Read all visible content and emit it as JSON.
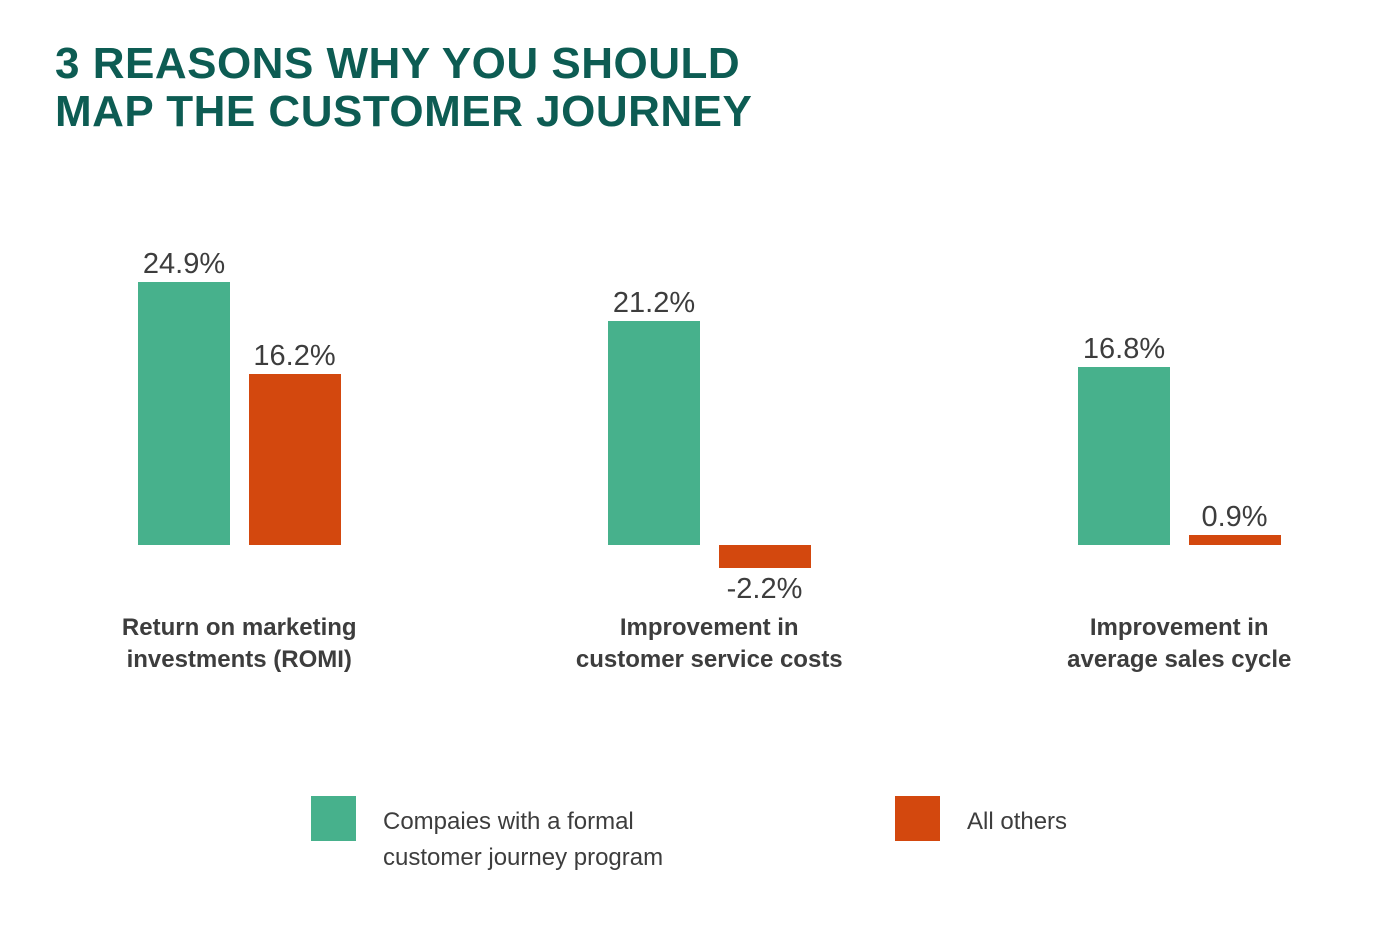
{
  "title": {
    "text": "3 REASONS WHY YOU SHOULD\nMAP THE CUSTOMER JOURNEY",
    "color": "#0d5c53"
  },
  "legend": {
    "items": [
      {
        "label": "Compaies with a formal\ncustomer journey program",
        "color": "#47b18c"
      },
      {
        "label": "All others",
        "color": "#d3480e"
      }
    ]
  },
  "chart_data": {
    "type": "bar",
    "title": "3 REASONS WHY YOU SHOULD MAP THE CUSTOMER JOURNEY",
    "categories": [
      "Return on marketing\ninvestments (ROMI)",
      "Improvement in\ncustomer service costs",
      "Improvement in\naverage sales cycle"
    ],
    "series": [
      {
        "name": "Compaies with a formal customer journey program",
        "color": "#47b18c",
        "values": [
          24.9,
          21.2,
          16.8
        ],
        "data_labels": [
          "24.9%",
          "21.2%",
          "16.8%"
        ]
      },
      {
        "name": "All others",
        "color": "#d3480e",
        "values": [
          16.2,
          -2.2,
          0.9
        ],
        "data_labels": [
          "16.2%",
          "-2.2%",
          "0.9%"
        ]
      }
    ],
    "unit": "%",
    "xlabel": "",
    "ylabel": "",
    "ylim": [
      -2.2,
      24.9
    ],
    "grid": false,
    "axes_visible": false,
    "legend_position": "bottom",
    "value_label_position": "outside-end"
  },
  "text_color": "#3d3d3d"
}
